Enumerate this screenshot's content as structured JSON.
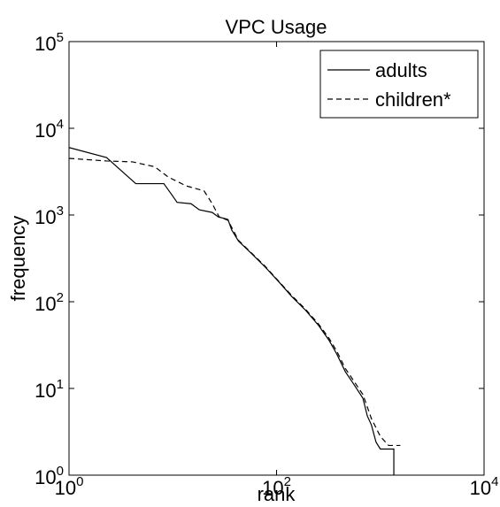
{
  "chart_data": {
    "type": "line",
    "title": "VPC Usage",
    "x_label": "rank",
    "y_label": "frequency",
    "log_x": true,
    "log_y": true,
    "legend": "top-right",
    "xlim": [
      1,
      10000
    ],
    "xticks": [
      {
        "value": 1,
        "label": "10",
        "sup": "0"
      },
      {
        "value": 100,
        "label": "10",
        "sup": "2"
      },
      {
        "value": 10000,
        "label": "10",
        "sup": "4"
      }
    ],
    "ylim": [
      1,
      100000
    ],
    "yticks": [
      {
        "value": 1,
        "label": "10",
        "sup": "0"
      },
      {
        "value": 10,
        "label": "10",
        "sup": "1"
      },
      {
        "value": 100,
        "label": "10",
        "sup": "2"
      },
      {
        "value": 1000,
        "label": "10",
        "sup": "3"
      },
      {
        "value": 10000,
        "label": "10",
        "sup": "4"
      },
      {
        "value": 100000,
        "label": "10",
        "sup": "5"
      }
    ],
    "series": [
      {
        "name": "adults",
        "color": "#000000",
        "dash": "solid",
        "x": [
          1,
          2.3,
          4.4,
          8.2,
          10,
          11,
          15,
          18,
          24,
          27.5,
          34,
          37,
          43,
          58,
          78,
          105,
          140,
          190,
          255,
          320,
          380,
          460,
          560,
          680,
          750,
          820,
          910,
          1000,
          1200,
          1350,
          1350
        ],
        "values": [
          6000,
          4600,
          2300,
          2300,
          1650,
          1400,
          1350,
          1150,
          1070,
          950,
          890,
          670,
          500,
          355,
          250,
          170,
          115,
          80,
          53,
          36,
          25,
          15.6,
          11,
          7.7,
          4.8,
          3.8,
          2.4,
          2,
          2,
          2,
          1
        ]
      },
      {
        "name": "children*",
        "color": "#000000",
        "dash": "dashed",
        "x": [
          1,
          2.3,
          4.1,
          6.7,
          9,
          13.4,
          20,
          24,
          28,
          34,
          43,
          58,
          78,
          105,
          140,
          190,
          255,
          320,
          380,
          460,
          560,
          680,
          820,
          1000,
          1200,
          1560
        ],
        "values": [
          4500,
          4200,
          4100,
          3600,
          2750,
          2170,
          1900,
          1350,
          950,
          870,
          510,
          360,
          255,
          172,
          118,
          82,
          55,
          38,
          27,
          17,
          12,
          8.5,
          4.5,
          2.8,
          2.2,
          2.2
        ]
      }
    ]
  }
}
